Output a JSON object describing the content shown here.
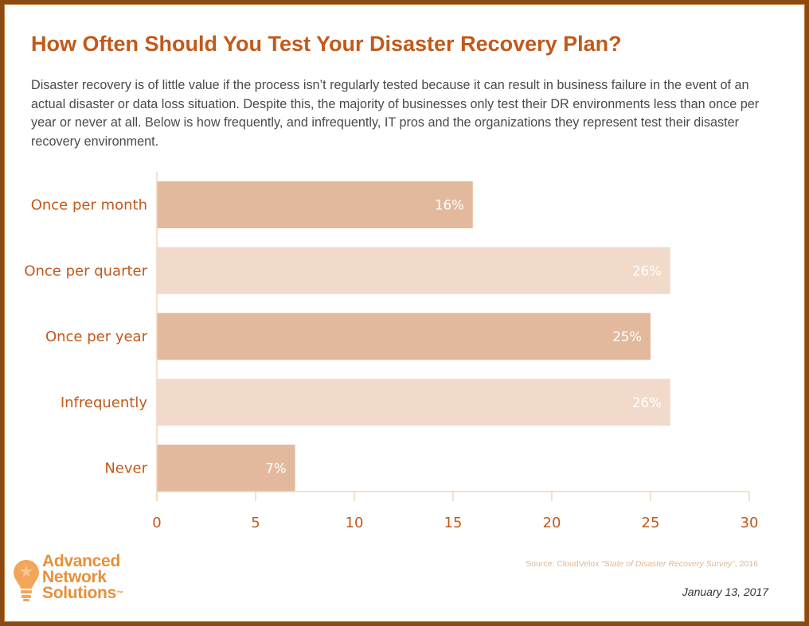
{
  "header": {
    "title": "How Often Should You Test Your Disaster Recovery Plan?",
    "subtitle": "Disaster recovery is of little value if the process isn’t regularly tested because it can result in business failure in the event of an actual disaster or data loss situation. Despite this, the majority of businesses only test their DR environments less than once per year or never at all. Below is how frequently, and infrequently, IT pros and the organizations they represent test their disaster recovery environment."
  },
  "chart_data": {
    "type": "bar",
    "orientation": "horizontal",
    "categories": [
      "Once per month",
      "Once per quarter",
      "Once per year",
      "Infrequently",
      "Never"
    ],
    "values": [
      16,
      26,
      25,
      26,
      7
    ],
    "value_labels": [
      "16%",
      "26%",
      "25%",
      "26%",
      "7%"
    ],
    "xlim": [
      0,
      30
    ],
    "xticks": [
      "0",
      "5",
      "10",
      "15",
      "20",
      "25",
      "30"
    ],
    "title": "",
    "xlabel": "",
    "ylabel": "",
    "grid": false,
    "bar_colors": [
      "#e3b99d",
      "#f2dacb",
      "#e3b99d",
      "#f2dacb",
      "#e3b99d"
    ],
    "axis_color": "#f0d6bd"
  },
  "footer": {
    "logo_lines": [
      "Advanced",
      "Network",
      "Solutions"
    ],
    "logo_tm": "™",
    "logo_icon": "lightbulb-icon",
    "source_prefix": "Source: CloudVelox ",
    "source_title": "“State of Disaster Recovery Survey”",
    "source_suffix": ", 2016",
    "date": "January 13, 2017"
  },
  "colors": {
    "accent": "#c2591a",
    "frame": "#8a4a12",
    "logo": "#e6903a"
  }
}
